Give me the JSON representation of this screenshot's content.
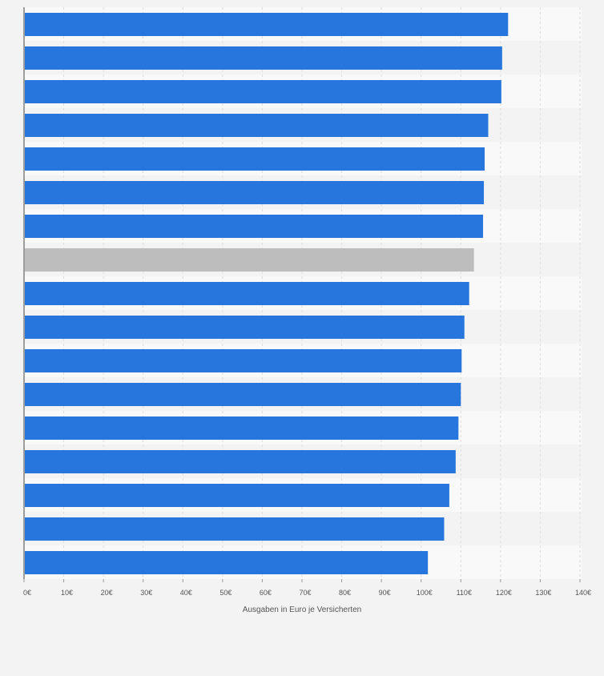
{
  "chart_data": {
    "type": "bar",
    "orientation": "horizontal",
    "xlabel": "Ausgaben in Euro je Versicherten",
    "ylabel": "",
    "xlim": [
      0,
      140
    ],
    "grid": true,
    "x_ticks": [
      "0€",
      "10€",
      "20€",
      "30€",
      "40€",
      "50€",
      "60€",
      "70€",
      "80€",
      "90€",
      "100€",
      "110€",
      "120€",
      "130€",
      "140€"
    ],
    "values": [
      121.9,
      120.4,
      120.2,
      116.9,
      116.0,
      115.8,
      115.6,
      113.3,
      112.1,
      110.9,
      110.2,
      110.0,
      109.4,
      108.7,
      107.1,
      105.8,
      101.7
    ],
    "highlight_index": 7,
    "colors": {
      "bar": "#2776de",
      "highlight": "#bdbdbd",
      "band_light": "#f9f9f9",
      "band_dark": "#f3f3f3",
      "axis": "#444444",
      "tick_text": "#555555"
    }
  }
}
